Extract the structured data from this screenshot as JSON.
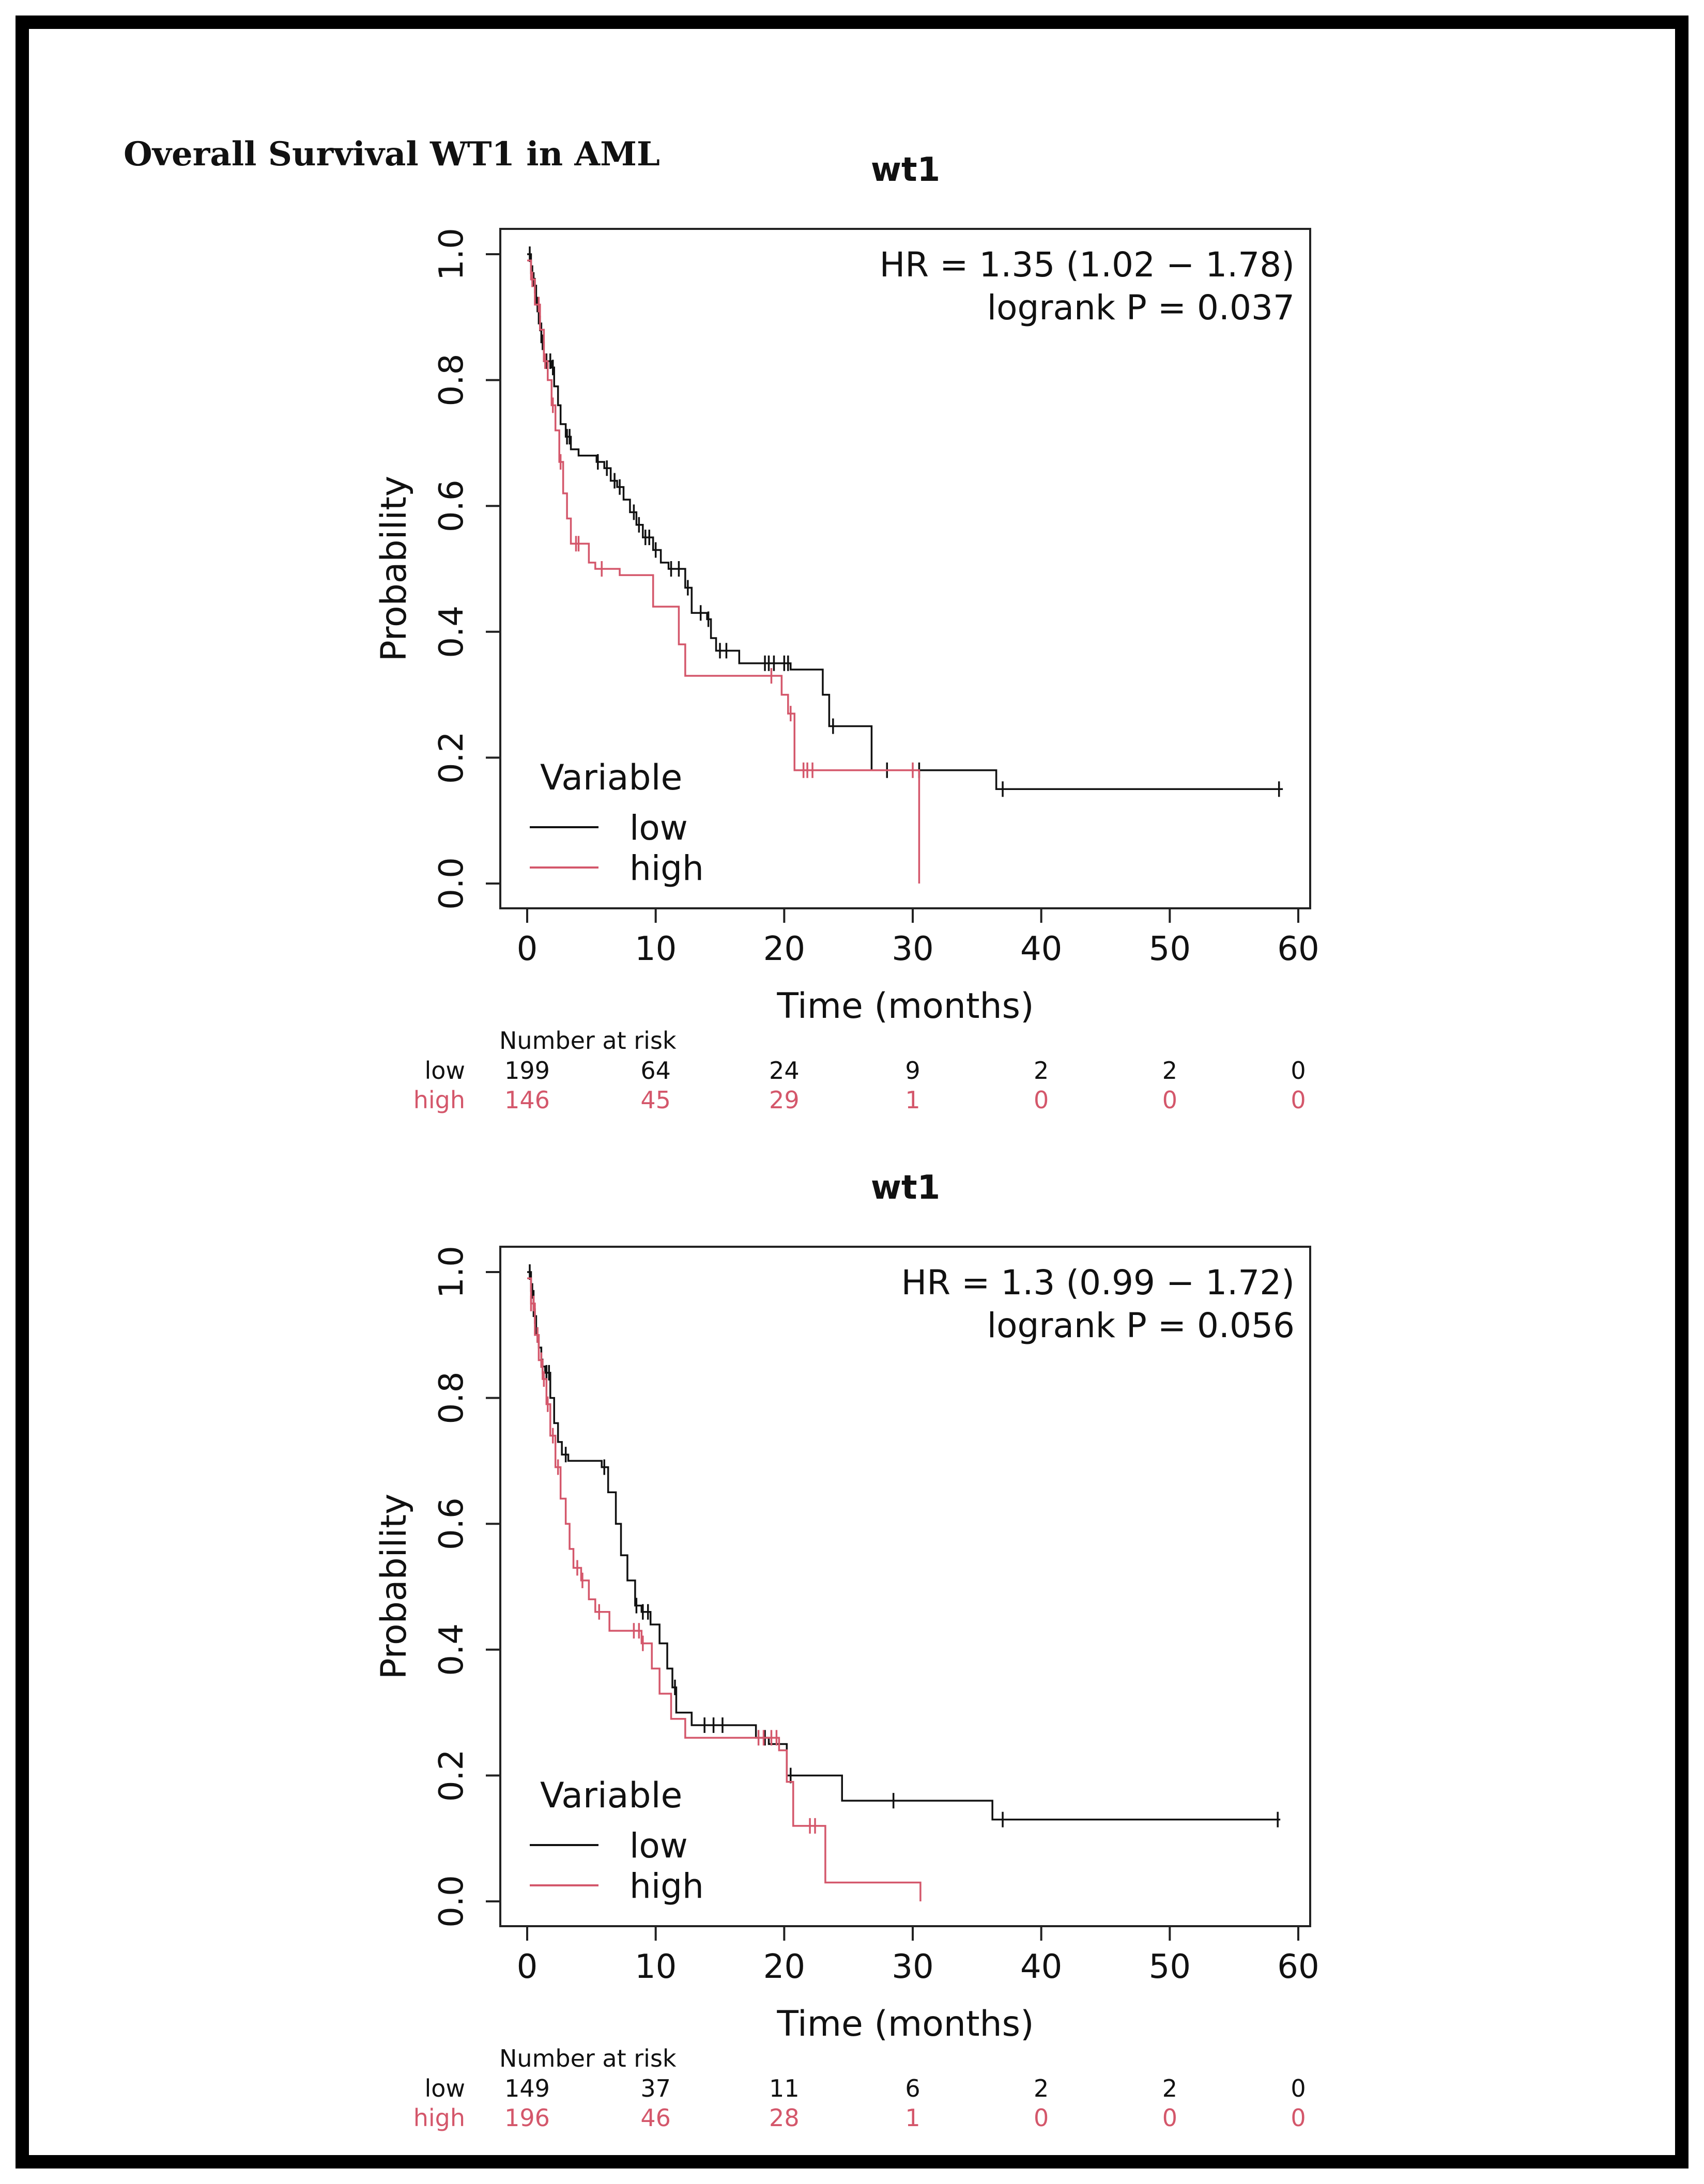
{
  "page_title": "Overall Survival WT1 in AML",
  "colors": {
    "low": "#111111",
    "high": "#d4576b"
  },
  "chart_data": [
    {
      "type": "line",
      "subtype": "kaplan-meier",
      "title": "wt1",
      "xlabel": "Time (months)",
      "ylabel": "Probability",
      "xlim": [
        0,
        60
      ],
      "ylim": [
        0,
        1
      ],
      "xticks": [
        0,
        10,
        20,
        30,
        40,
        50,
        60
      ],
      "yticks": [
        0.0,
        0.2,
        0.4,
        0.6,
        0.8,
        1.0
      ],
      "ytick_labels": [
        "0.0",
        "0.2",
        "0.4",
        "0.6",
        "0.8",
        "1.0"
      ],
      "annotation": [
        "HR = 1.35 (1.02 − 1.78)",
        "logrank P = 0.037"
      ],
      "legend": {
        "title": "Variable",
        "position": "bottom-left",
        "entries": [
          "low",
          "high"
        ]
      },
      "series": [
        {
          "name": "low",
          "steps": [
            [
              0,
              1.0
            ],
            [
              0.3,
              0.97
            ],
            [
              0.5,
              0.95
            ],
            [
              0.7,
              0.92
            ],
            [
              0.9,
              0.89
            ],
            [
              1.1,
              0.86
            ],
            [
              1.3,
              0.83
            ],
            [
              1.9,
              0.82
            ],
            [
              2.1,
              0.79
            ],
            [
              2.4,
              0.76
            ],
            [
              2.6,
              0.73
            ],
            [
              3.0,
              0.71
            ],
            [
              3.4,
              0.69
            ],
            [
              4.0,
              0.68
            ],
            [
              5.4,
              0.67
            ],
            [
              6.0,
              0.66
            ],
            [
              6.5,
              0.64
            ],
            [
              7.0,
              0.63
            ],
            [
              7.5,
              0.61
            ],
            [
              8.0,
              0.59
            ],
            [
              8.5,
              0.57
            ],
            [
              9.0,
              0.55
            ],
            [
              9.8,
              0.53
            ],
            [
              10.4,
              0.51
            ],
            [
              11.0,
              0.5
            ],
            [
              12.3,
              0.47
            ],
            [
              12.8,
              0.43
            ],
            [
              14.0,
              0.42
            ],
            [
              14.3,
              0.39
            ],
            [
              14.7,
              0.37
            ],
            [
              16.5,
              0.35
            ],
            [
              20.5,
              0.34
            ],
            [
              23.0,
              0.3
            ],
            [
              23.5,
              0.25
            ],
            [
              26.8,
              0.18
            ],
            [
              36.5,
              0.15
            ],
            [
              58.8,
              0.15
            ]
          ],
          "censor_times": [
            0.2,
            0.4,
            0.6,
            0.8,
            1.0,
            1.2,
            1.5,
            1.8,
            2.0,
            3.1,
            3.3,
            5.5,
            6.2,
            6.8,
            7.2,
            8.3,
            8.7,
            9.2,
            9.5,
            10.0,
            11.2,
            11.8,
            12.5,
            13.5,
            14.1,
            15.0,
            15.5,
            18.5,
            18.8,
            19.2,
            20.0,
            20.3,
            23.8,
            28.0,
            30.5,
            37.0,
            58.5
          ]
        },
        {
          "name": "high",
          "steps": [
            [
              0,
              0.99
            ],
            [
              0.3,
              0.96
            ],
            [
              0.6,
              0.92
            ],
            [
              1.0,
              0.88
            ],
            [
              1.3,
              0.83
            ],
            [
              1.6,
              0.8
            ],
            [
              1.9,
              0.76
            ],
            [
              2.2,
              0.72
            ],
            [
              2.5,
              0.67
            ],
            [
              2.8,
              0.62
            ],
            [
              3.1,
              0.58
            ],
            [
              3.4,
              0.54
            ],
            [
              4.8,
              0.51
            ],
            [
              5.3,
              0.5
            ],
            [
              7.2,
              0.49
            ],
            [
              9.8,
              0.44
            ],
            [
              11.8,
              0.38
            ],
            [
              12.3,
              0.33
            ],
            [
              19.8,
              0.3
            ],
            [
              20.3,
              0.27
            ],
            [
              20.8,
              0.18
            ],
            [
              30.5,
              0.0
            ]
          ],
          "censor_times": [
            0.4,
            0.9,
            1.4,
            2.0,
            2.6,
            3.8,
            4.0,
            5.8,
            19.0,
            20.5,
            21.5,
            21.8,
            22.2,
            30.0
          ]
        }
      ],
      "risk_table": {
        "heading": "Number at risk",
        "times": [
          0,
          10,
          20,
          30,
          40,
          50,
          60
        ],
        "rows": [
          {
            "label": "low",
            "counts": [
              "199",
              "64",
              "24",
              "9",
              "2",
              "2",
              "0"
            ]
          },
          {
            "label": "high",
            "counts": [
              "146",
              "45",
              "29",
              "1",
              "0",
              "0",
              "0"
            ]
          }
        ]
      }
    },
    {
      "type": "line",
      "subtype": "kaplan-meier",
      "title": "wt1",
      "xlabel": "Time (months)",
      "ylabel": "Probability",
      "xlim": [
        0,
        60
      ],
      "ylim": [
        0,
        1
      ],
      "xticks": [
        0,
        10,
        20,
        30,
        40,
        50,
        60
      ],
      "yticks": [
        0.0,
        0.2,
        0.4,
        0.6,
        0.8,
        1.0
      ],
      "ytick_labels": [
        "0.0",
        "0.2",
        "0.4",
        "0.6",
        "0.8",
        "1.0"
      ],
      "annotation": [
        "HR = 1.3 (0.99 − 1.72)",
        "logrank P = 0.056"
      ],
      "legend": {
        "title": "Variable",
        "position": "bottom-left",
        "entries": [
          "low",
          "high"
        ]
      },
      "series": [
        {
          "name": "low",
          "steps": [
            [
              0,
              1.0
            ],
            [
              0.3,
              0.97
            ],
            [
              0.5,
              0.93
            ],
            [
              0.7,
              0.9
            ],
            [
              0.9,
              0.88
            ],
            [
              1.1,
              0.85
            ],
            [
              1.4,
              0.84
            ],
            [
              1.8,
              0.8
            ],
            [
              2.1,
              0.76
            ],
            [
              2.4,
              0.73
            ],
            [
              2.7,
              0.71
            ],
            [
              3.2,
              0.7
            ],
            [
              5.8,
              0.69
            ],
            [
              6.3,
              0.65
            ],
            [
              6.9,
              0.6
            ],
            [
              7.3,
              0.55
            ],
            [
              7.8,
              0.51
            ],
            [
              8.4,
              0.47
            ],
            [
              8.9,
              0.46
            ],
            [
              9.6,
              0.44
            ],
            [
              10.3,
              0.41
            ],
            [
              10.9,
              0.37
            ],
            [
              11.3,
              0.34
            ],
            [
              11.6,
              0.3
            ],
            [
              12.8,
              0.28
            ],
            [
              17.8,
              0.26
            ],
            [
              18.8,
              0.25
            ],
            [
              20.2,
              0.2
            ],
            [
              24.5,
              0.16
            ],
            [
              36.2,
              0.13
            ],
            [
              58.6,
              0.13
            ]
          ],
          "censor_times": [
            0.2,
            0.4,
            0.6,
            0.8,
            1.2,
            1.5,
            1.7,
            3.0,
            6.0,
            8.5,
            9.0,
            9.4,
            11.5,
            13.8,
            14.5,
            15.2,
            18.5,
            20.5,
            28.5,
            37.0,
            58.4
          ]
        },
        {
          "name": "high",
          "steps": [
            [
              0,
              0.99
            ],
            [
              0.3,
              0.95
            ],
            [
              0.6,
              0.9
            ],
            [
              0.9,
              0.86
            ],
            [
              1.2,
              0.83
            ],
            [
              1.5,
              0.79
            ],
            [
              1.8,
              0.74
            ],
            [
              2.2,
              0.69
            ],
            [
              2.6,
              0.64
            ],
            [
              3.0,
              0.6
            ],
            [
              3.3,
              0.56
            ],
            [
              3.6,
              0.53
            ],
            [
              4.2,
              0.51
            ],
            [
              4.8,
              0.48
            ],
            [
              5.3,
              0.46
            ],
            [
              6.4,
              0.43
            ],
            [
              8.9,
              0.41
            ],
            [
              9.7,
              0.37
            ],
            [
              10.3,
              0.33
            ],
            [
              11.2,
              0.29
            ],
            [
              12.3,
              0.26
            ],
            [
              19.6,
              0.24
            ],
            [
              20.2,
              0.19
            ],
            [
              20.7,
              0.12
            ],
            [
              22.8,
              0.12
            ],
            [
              23.2,
              0.03
            ],
            [
              30.6,
              0.03
            ],
            [
              30.6,
              0.0
            ]
          ],
          "censor_times": [
            0.3,
            0.5,
            0.8,
            1.1,
            1.3,
            1.6,
            2.0,
            2.4,
            3.9,
            4.3,
            5.6,
            8.3,
            8.7,
            9.0,
            18.0,
            18.4,
            19.0,
            19.4,
            22.0,
            22.4
          ]
        }
      ],
      "risk_table": {
        "heading": "Number at risk",
        "times": [
          0,
          10,
          20,
          30,
          40,
          50,
          60
        ],
        "rows": [
          {
            "label": "low",
            "counts": [
              "149",
              "37",
              "11",
              "6",
              "2",
              "2",
              "0"
            ]
          },
          {
            "label": "high",
            "counts": [
              "196",
              "46",
              "28",
              "1",
              "0",
              "0",
              "0"
            ]
          }
        ]
      }
    }
  ]
}
